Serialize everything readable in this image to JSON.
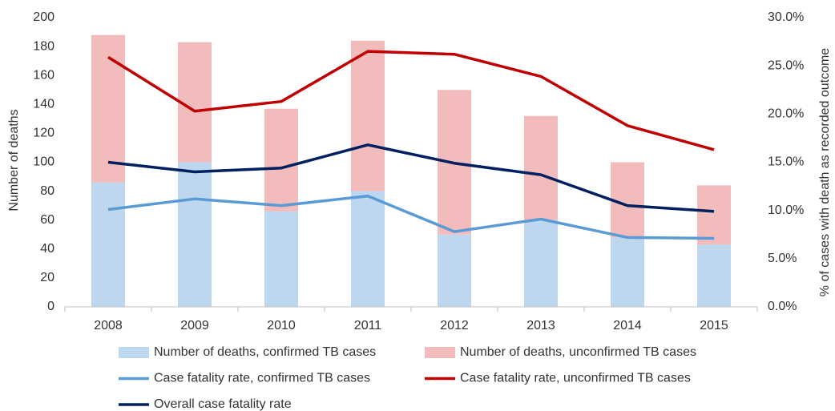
{
  "chart_data": {
    "type": "bar",
    "categories": [
      "2008",
      "2009",
      "2010",
      "2011",
      "2012",
      "2013",
      "2014",
      "2015"
    ],
    "y_label": "Number of deaths",
    "y2_label": "% of cases with death as recorded outcome",
    "ylim": [
      0,
      200
    ],
    "yticks": [
      0,
      20,
      40,
      60,
      80,
      100,
      120,
      140,
      160,
      180,
      200
    ],
    "y2lim": [
      0,
      30
    ],
    "y2ticks": [
      {
        "value": 0,
        "label": "0.0%"
      },
      {
        "value": 5,
        "label": "5.0%"
      },
      {
        "value": 10,
        "label": "10.0%"
      },
      {
        "value": 15,
        "label": "15.0%"
      },
      {
        "value": 20,
        "label": "20.0%"
      },
      {
        "value": 25,
        "label": "25.0%"
      },
      {
        "value": 30,
        "label": "30.0%"
      }
    ],
    "stacked": true,
    "series": [
      {
        "name": "Number of deaths, confirmed TB cases",
        "type": "bar",
        "color": "#bdd7ee",
        "values": [
          86,
          100,
          66,
          80,
          50,
          60,
          48,
          43
        ]
      },
      {
        "name": "Number of deaths, unconfirmed TB cases",
        "type": "bar",
        "color": "#f2bcbd",
        "values": [
          102,
          83,
          71,
          104,
          100,
          72,
          52,
          41
        ]
      },
      {
        "name": "Case fatality rate, confirmed TB cases",
        "type": "line",
        "axis": "y2",
        "color": "#5b9bd5",
        "values": [
          10.1,
          11.2,
          10.5,
          11.5,
          7.8,
          9.1,
          7.2,
          7.1
        ]
      },
      {
        "name": "Case fatality rate, unconfirmed TB cases",
        "type": "line",
        "axis": "y2",
        "color": "#c00000",
        "values": [
          25.9,
          20.3,
          21.3,
          26.5,
          26.2,
          23.9,
          18.8,
          16.3
        ]
      },
      {
        "name": "Overall case fatality rate",
        "type": "line",
        "axis": "y2",
        "color": "#002060",
        "values": [
          15.0,
          14.0,
          14.4,
          16.8,
          14.9,
          13.7,
          10.5,
          9.9
        ]
      }
    ]
  }
}
